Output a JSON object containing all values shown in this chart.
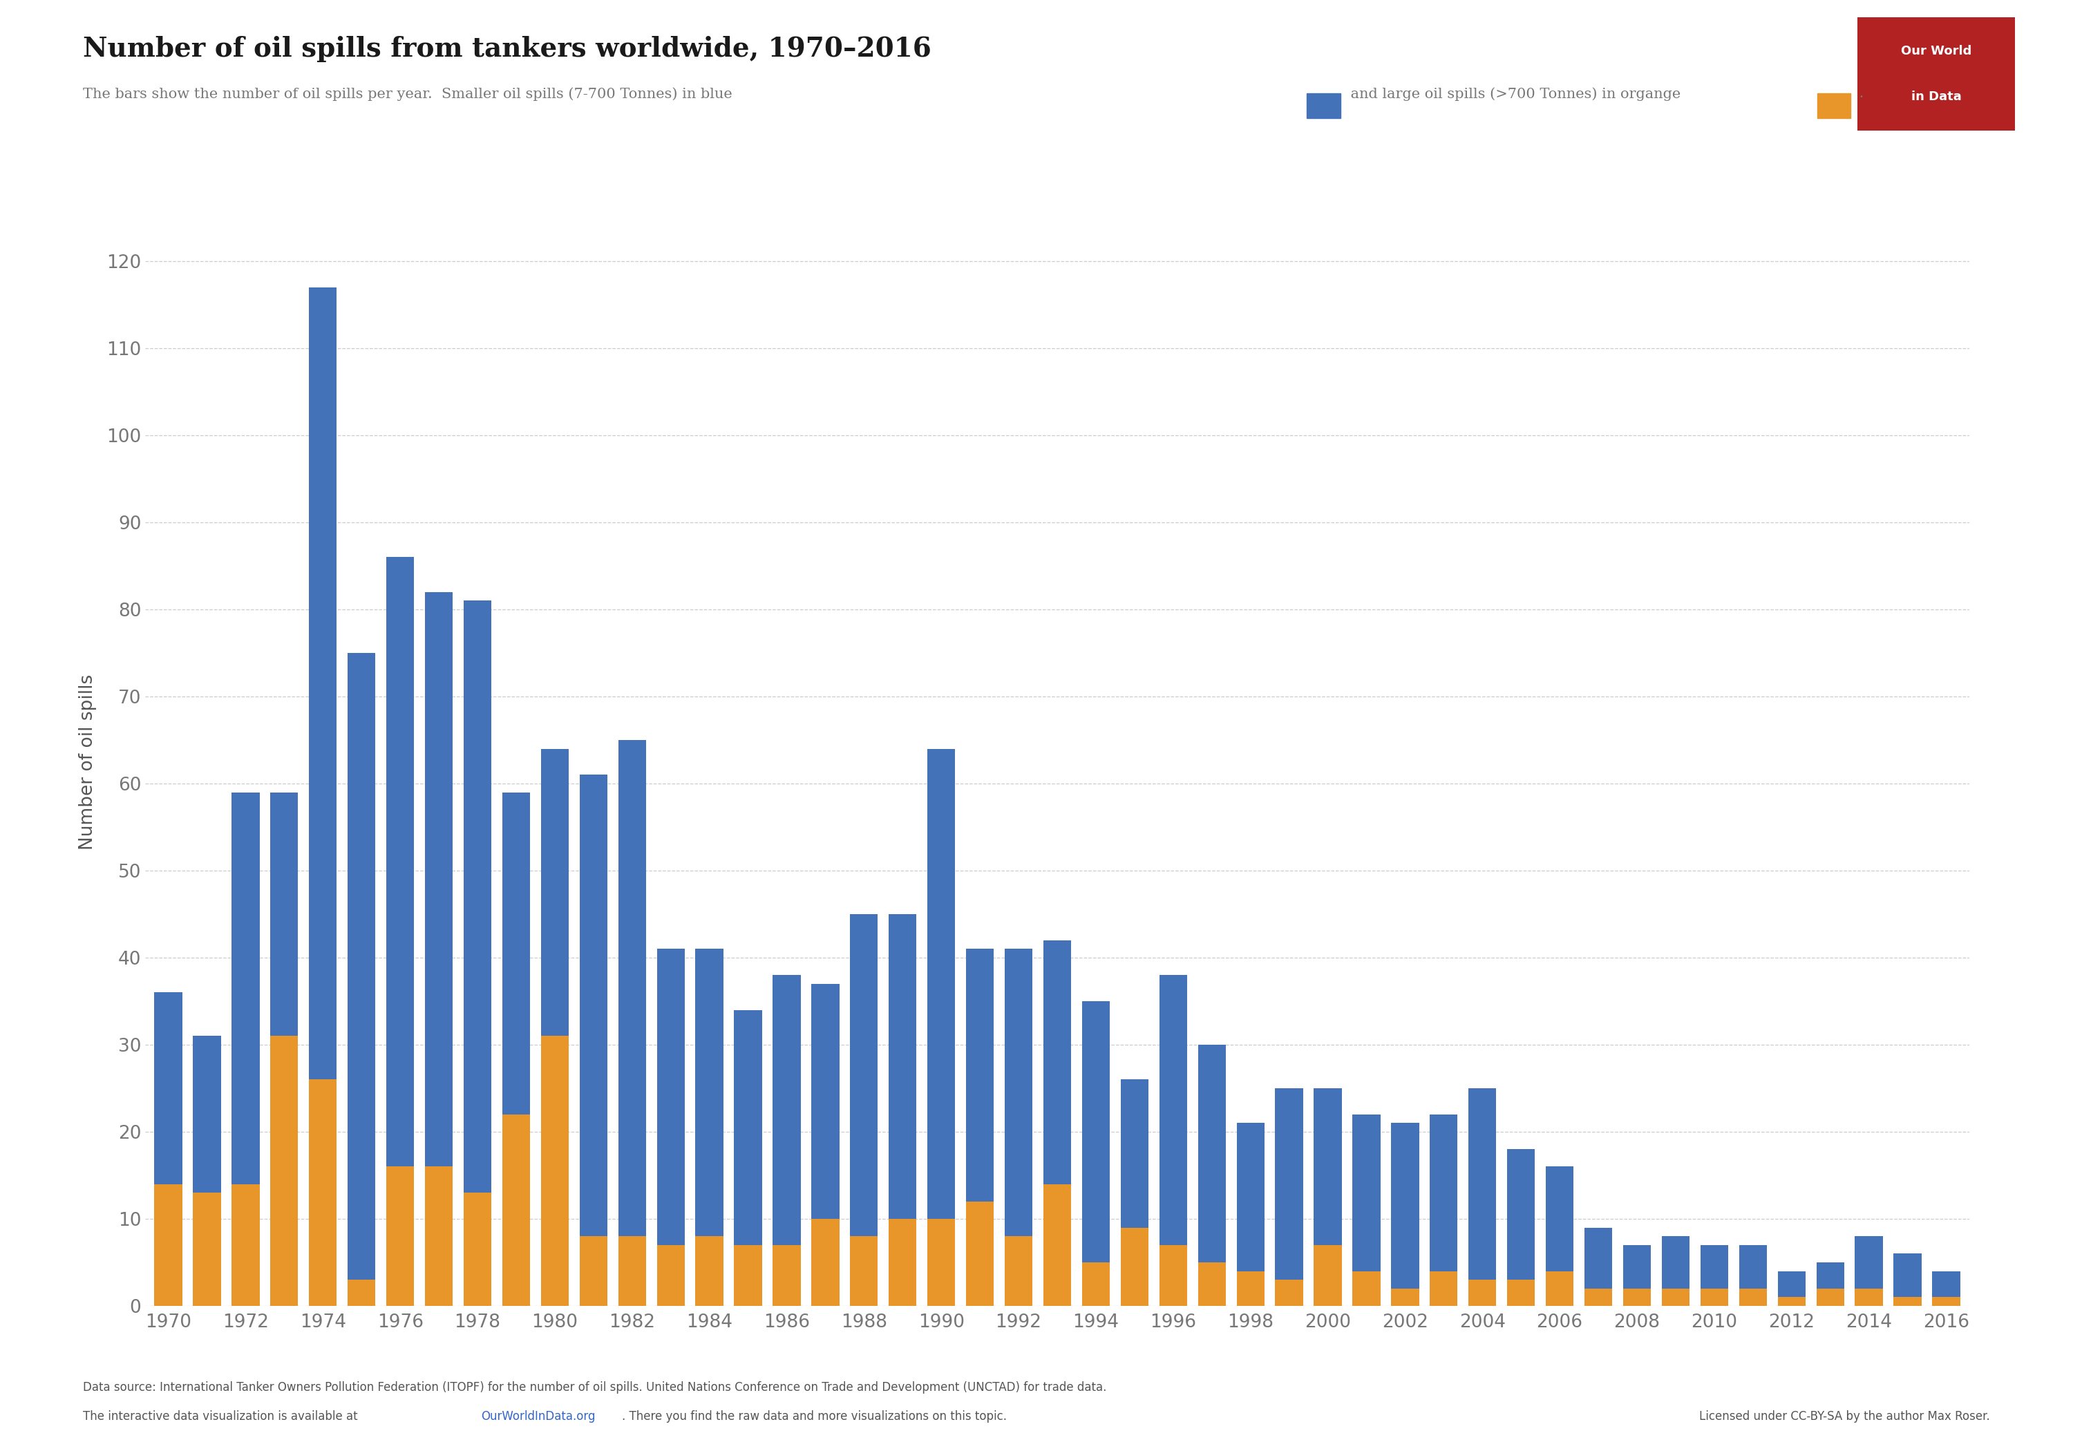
{
  "title": "Number of oil spills from tankers worldwide, 1970–2016",
  "ylabel": "Number of oil spills",
  "years": [
    1970,
    1971,
    1972,
    1973,
    1974,
    1975,
    1976,
    1977,
    1978,
    1979,
    1980,
    1981,
    1982,
    1983,
    1984,
    1985,
    1986,
    1987,
    1988,
    1989,
    1990,
    1991,
    1992,
    1993,
    1994,
    1995,
    1996,
    1997,
    1998,
    1999,
    2000,
    2001,
    2002,
    2003,
    2004,
    2005,
    2006,
    2007,
    2008,
    2009,
    2010,
    2011,
    2012,
    2013,
    2014,
    2015,
    2016
  ],
  "small_spills": [
    22,
    18,
    45,
    28,
    91,
    72,
    70,
    66,
    68,
    37,
    33,
    53,
    57,
    34,
    33,
    27,
    31,
    27,
    37,
    35,
    54,
    29,
    33,
    28,
    30,
    17,
    31,
    25,
    17,
    22,
    18,
    18,
    19,
    18,
    22,
    15,
    12,
    7,
    5,
    6,
    5,
    5,
    3,
    3,
    6,
    5,
    3
  ],
  "large_spills": [
    14,
    13,
    14,
    31,
    26,
    3,
    16,
    16,
    13,
    22,
    31,
    8,
    8,
    7,
    8,
    7,
    7,
    10,
    8,
    10,
    10,
    12,
    8,
    14,
    5,
    9,
    7,
    5,
    4,
    3,
    7,
    4,
    2,
    4,
    3,
    3,
    4,
    2,
    2,
    2,
    2,
    2,
    1,
    2,
    2,
    1,
    1
  ],
  "blue_color": "#4472b8",
  "orange_color": "#e8952a",
  "background_color": "#ffffff",
  "grid_color": "#cccccc",
  "title_color": "#1a1a1a",
  "subtitle_color": "#777777",
  "ylabel_color": "#555555",
  "tick_color": "#777777",
  "ylim": [
    0,
    125
  ],
  "yticks": [
    0,
    10,
    20,
    30,
    40,
    50,
    60,
    70,
    80,
    90,
    100,
    110,
    120
  ],
  "footer_line1": "Data source: International Tanker Owners Pollution Federation (ITOPF) for the number of oil spills. United Nations Conference on Trade and Development (UNCTAD) for trade data.",
  "footer_line2a": "The interactive data visualization is available at ",
  "footer_line2_link": "OurWorldInData.org",
  "footer_line2b": ". There you find the raw data and more visualizations on this topic.",
  "footer_right": "Licensed under CC-BY-SA by the author Max Roser.",
  "logo_bg_color": "#b22222",
  "logo_text1": "Our World",
  "logo_text2": "in Data"
}
